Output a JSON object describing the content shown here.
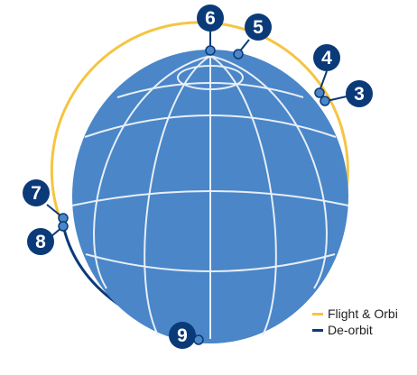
{
  "colors": {
    "sphere": "#4a86c8",
    "grid": "#e6eef8",
    "flight_orbit": "#f5c542",
    "de_orbit": "#0b3a78",
    "marker": "#0b3a78",
    "dot": "#4a86c8"
  },
  "markers": [
    {
      "label": "6"
    },
    {
      "label": "5"
    },
    {
      "label": "4"
    },
    {
      "label": "3"
    },
    {
      "label": "7"
    },
    {
      "label": "8"
    },
    {
      "label": "9"
    }
  ],
  "legend": [
    {
      "label": "Flight & Orbi",
      "color": "#f5c542"
    },
    {
      "label": "De-orbit",
      "color": "#0b3a78"
    }
  ]
}
